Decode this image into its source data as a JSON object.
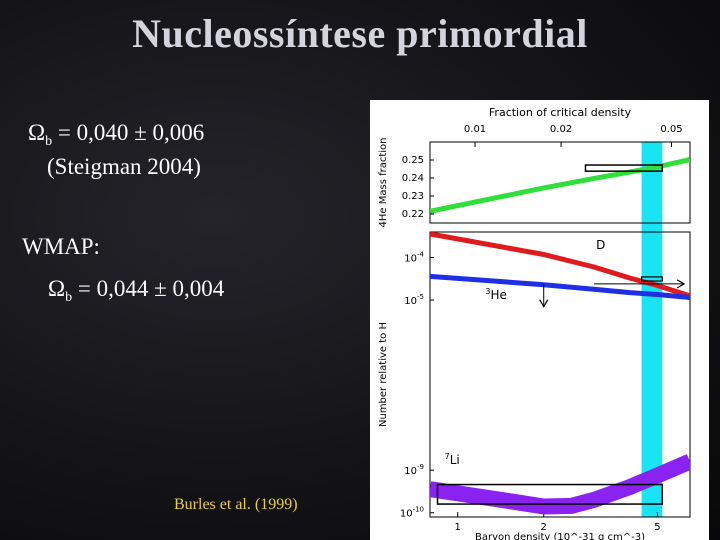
{
  "slide": {
    "title": "Nucleossíntese primordial",
    "result1_symbol": "Ω",
    "result1_sub": "b",
    "result1_value": " = 0,040 ± 0,006",
    "result1_ref": "(Steigman 2004)",
    "wmap_label": "WMAP:",
    "result2_symbol": "Ω",
    "result2_sub": "b",
    "result2_value": " = 0,044 ± 0,004",
    "credit": "Burles et al. (1999)"
  },
  "chart_data": [
    {
      "type": "line",
      "panel": "He-4 mass fraction",
      "title": "Fraction of critical density",
      "top_axis_ticks": [
        "0.01",
        "0.02",
        "0.05"
      ],
      "ylabel": "4He Mass fraction",
      "y_ticks": [
        "0.25",
        "0.24",
        "0.23",
        "0.22"
      ],
      "ylim": [
        0.215,
        0.26
      ],
      "xlim": [
        0.8,
        6.5
      ],
      "series": [
        {
          "label": "4He",
          "x": [
            0.8,
            2,
            3,
            4,
            5,
            6.5
          ],
          "y": [
            0.2215,
            0.2345,
            0.2398,
            0.2433,
            0.2462,
            0.2502
          ]
        }
      ],
      "box": {
        "x": [
          2.8,
          5.2
        ],
        "y": [
          0.2438,
          0.2472
        ]
      },
      "highlight_band_x": [
        4.4,
        5.2
      ],
      "colors": {
        "series": "#2fe03a",
        "band": "#18e4f4"
      }
    },
    {
      "type": "line",
      "panel": "Number relative to H",
      "ylabel": "Number relative to H",
      "y_ticks": [
        "10^-4",
        "10^-5",
        "10^-9",
        "10^-10"
      ],
      "xlabel": "Baryon density (10^-31 g cm^-3)",
      "x_ticks": [
        "1",
        "2",
        "5"
      ],
      "xlim": [
        0.8,
        6.5
      ],
      "series": [
        {
          "label": "D",
          "x": [
            0.8,
            2,
            3,
            4,
            5,
            6.5
          ],
          "y": [
            0.00036,
            0.000118,
            6e-05,
            3.3e-05,
            2.2e-05,
            1.25e-05
          ]
        },
        {
          "label": "3He",
          "x": [
            0.8,
            2,
            3,
            4,
            5,
            6.5
          ],
          "y": [
            3.6e-05,
            2.3e-05,
            1.8e-05,
            1.5e-05,
            1.35e-05,
            1.15e-05
          ]
        },
        {
          "label": "7Li",
          "x": [
            0.8,
            1.5,
            2,
            2.5,
            3,
            4,
            5,
            6.5
          ],
          "y": [
            3.6e-10,
            1.9e-10,
            1.4e-10,
            1.45e-10,
            2e-10,
            4e-10,
            7.5e-10,
            1.6e-09
          ]
        }
      ],
      "annotations": [
        "D",
        "3He",
        "7Li"
      ],
      "colors": {
        "D": "#e11b1b",
        "3He": "#1f2fe6",
        "7Li": "#8a22f2",
        "band": "#18e4f4"
      }
    }
  ]
}
